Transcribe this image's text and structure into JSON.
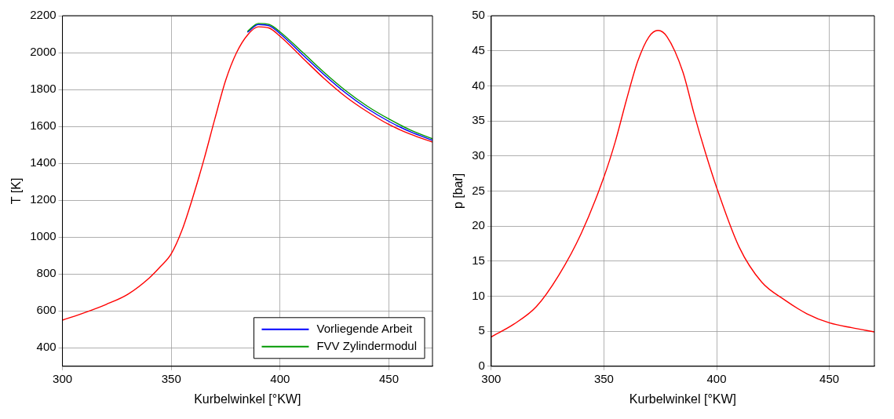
{
  "chart_data": [
    {
      "type": "line",
      "xlabel": "Kurbelwinkel [°KW]",
      "ylabel": "T [K]",
      "x": [
        300,
        310,
        320,
        330,
        340,
        345,
        350,
        355,
        360,
        365,
        370,
        375,
        380,
        385,
        390,
        395,
        400,
        410,
        420,
        430,
        440,
        450,
        460,
        470
      ],
      "xlim": [
        300,
        470
      ],
      "xticks": [
        300,
        350,
        400,
        450
      ],
      "ylim": [
        300,
        2200
      ],
      "yticks": [
        400,
        600,
        800,
        1000,
        1200,
        1400,
        1600,
        1800,
        2000,
        2200
      ],
      "grid": true,
      "legend": "bottom right",
      "marker": "none",
      "line_style": "solid",
      "series": [
        {
          "name": "Vorliegende Arbeit",
          "color": "#0000ff",
          "values": [
            null,
            null,
            null,
            null,
            null,
            null,
            null,
            null,
            null,
            null,
            null,
            null,
            null,
            2110,
            2152,
            2145,
            2102,
            1992,
            1882,
            1782,
            1697,
            1627,
            1570,
            1525
          ]
        },
        {
          "name": "FVV Zylindermodul",
          "color": "#009900",
          "values": [
            null,
            null,
            null,
            null,
            null,
            null,
            null,
            null,
            null,
            null,
            null,
            null,
            null,
            2115,
            2158,
            2152,
            2112,
            2005,
            1895,
            1795,
            1710,
            1640,
            1580,
            1533
          ]
        },
        {
          "color": "#ff0000",
          "values": [
            550,
            590,
            635,
            690,
            780,
            840,
            910,
            1040,
            1220,
            1420,
            1640,
            1850,
            2000,
            2095,
            2140,
            2133,
            2088,
            1975,
            1862,
            1762,
            1680,
            1610,
            1557,
            1515
          ]
        }
      ]
    },
    {
      "type": "line",
      "xlabel": "Kurbelwinkel [°KW]",
      "ylabel": "p [bar]",
      "x": [
        300,
        310,
        320,
        330,
        340,
        350,
        355,
        360,
        365,
        370,
        374,
        378,
        385,
        390,
        395,
        400,
        410,
        420,
        430,
        440,
        450,
        460,
        470
      ],
      "xlim": [
        300,
        470
      ],
      "xticks": [
        300,
        350,
        400,
        450
      ],
      "ylim": [
        0,
        50
      ],
      "yticks": [
        0,
        5,
        10,
        15,
        20,
        25,
        30,
        35,
        40,
        45,
        50
      ],
      "grid": true,
      "marker": "none",
      "line_style": "solid",
      "series": [
        {
          "color": "#ff0000",
          "values": [
            4.2,
            6,
            8.5,
            13,
            19,
            27,
            32,
            38,
            43.5,
            47,
            47.9,
            47,
            42,
            36,
            30.5,
            25.5,
            17,
            12,
            9.5,
            7.5,
            6.2,
            5.5,
            4.9
          ]
        }
      ]
    }
  ]
}
